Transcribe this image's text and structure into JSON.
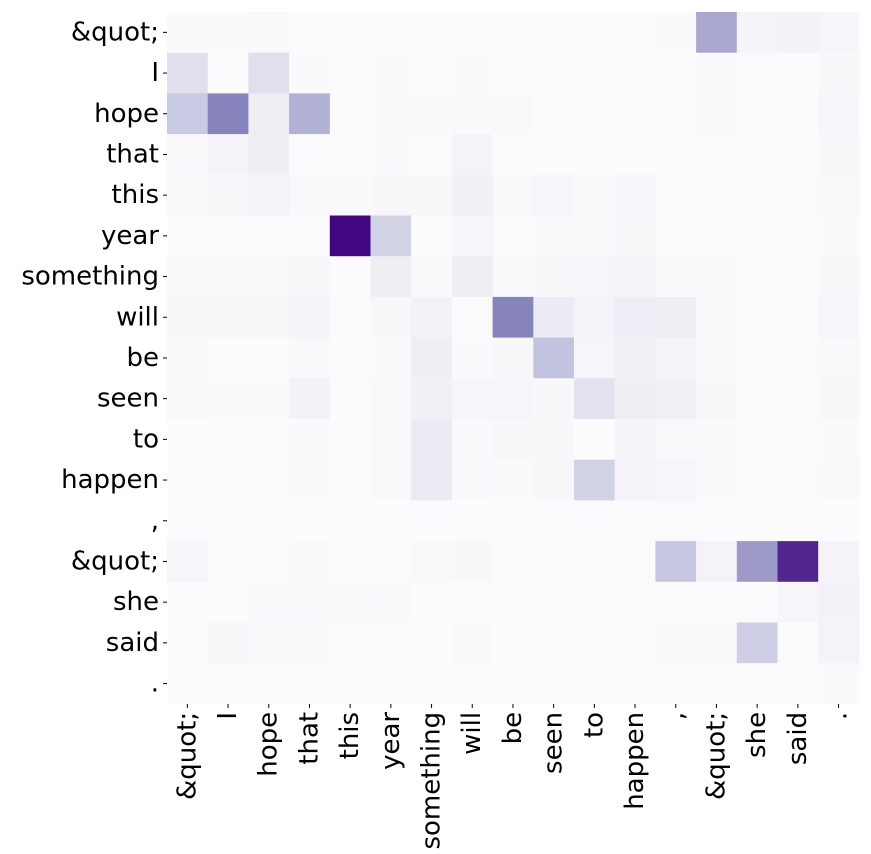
{
  "chart_data": {
    "type": "heatmap",
    "title": "",
    "xlabel": "",
    "ylabel": "",
    "x_labels": [
      "&quot;",
      "I",
      "hope",
      "that",
      "this",
      "year",
      "something",
      "will",
      "be",
      "seen",
      "to",
      "happen",
      ",",
      "&quot;",
      "she",
      "said",
      "."
    ],
    "y_labels": [
      "&quot;",
      "I",
      "hope",
      "that",
      "this",
      "year",
      "something",
      "will",
      "be",
      "seen",
      "to",
      "happen",
      ",",
      "&quot;",
      "she",
      "said",
      "."
    ],
    "colormap": "Purples",
    "value_range": [
      0,
      1
    ],
    "grid": false,
    "colorbar": false,
    "values": [
      [
        0.02,
        0.02,
        0.03,
        0.01,
        0.01,
        0.01,
        0.01,
        0.01,
        0.01,
        0.01,
        0.01,
        0.01,
        0.02,
        0.45,
        0.06,
        0.08,
        0.05
      ],
      [
        0.22,
        0.01,
        0.22,
        0.02,
        0.01,
        0.02,
        0.01,
        0.02,
        0.01,
        0.01,
        0.01,
        0.01,
        0.01,
        0.02,
        0.01,
        0.01,
        0.04
      ],
      [
        0.32,
        0.6,
        0.12,
        0.42,
        0.01,
        0.02,
        0.02,
        0.03,
        0.03,
        0.01,
        0.01,
        0.01,
        0.01,
        0.03,
        0.01,
        0.01,
        0.05
      ],
      [
        0.02,
        0.07,
        0.12,
        0.01,
        0.01,
        0.02,
        0.01,
        0.07,
        0.01,
        0.01,
        0.01,
        0.01,
        0.01,
        0.01,
        0.01,
        0.01,
        0.04
      ],
      [
        0.03,
        0.04,
        0.07,
        0.03,
        0.02,
        0.04,
        0.04,
        0.1,
        0.03,
        0.05,
        0.03,
        0.05,
        0.01,
        0.01,
        0.01,
        0.01,
        0.03
      ],
      [
        0.01,
        0.01,
        0.01,
        0.01,
        0.98,
        0.28,
        0.01,
        0.05,
        0.01,
        0.02,
        0.02,
        0.04,
        0.01,
        0.01,
        0.01,
        0.01,
        0.02
      ],
      [
        0.02,
        0.03,
        0.03,
        0.04,
        0.01,
        0.12,
        0.02,
        0.12,
        0.03,
        0.04,
        0.05,
        0.06,
        0.02,
        0.02,
        0.01,
        0.01,
        0.04
      ],
      [
        0.04,
        0.04,
        0.04,
        0.06,
        0.01,
        0.04,
        0.08,
        0.01,
        0.6,
        0.14,
        0.07,
        0.13,
        0.12,
        0.03,
        0.01,
        0.01,
        0.05
      ],
      [
        0.02,
        0.01,
        0.01,
        0.03,
        0.01,
        0.02,
        0.12,
        0.02,
        0.04,
        0.35,
        0.05,
        0.1,
        0.07,
        0.02,
        0.01,
        0.01,
        0.03
      ],
      [
        0.03,
        0.02,
        0.02,
        0.08,
        0.01,
        0.03,
        0.1,
        0.05,
        0.05,
        0.04,
        0.2,
        0.12,
        0.1,
        0.04,
        0.01,
        0.01,
        0.04
      ],
      [
        0.01,
        0.01,
        0.01,
        0.02,
        0.01,
        0.03,
        0.14,
        0.02,
        0.04,
        0.04,
        0.0,
        0.06,
        0.03,
        0.02,
        0.01,
        0.01,
        0.02
      ],
      [
        0.01,
        0.01,
        0.01,
        0.02,
        0.01,
        0.03,
        0.14,
        0.03,
        0.02,
        0.04,
        0.28,
        0.06,
        0.05,
        0.02,
        0.01,
        0.01,
        0.03
      ],
      [
        0.01,
        0.01,
        0.01,
        0.01,
        0.01,
        0.01,
        0.01,
        0.01,
        0.01,
        0.01,
        0.01,
        0.01,
        0.01,
        0.01,
        0.01,
        0.01,
        0.01
      ],
      [
        0.05,
        0.01,
        0.01,
        0.03,
        0.01,
        0.01,
        0.03,
        0.04,
        0.01,
        0.01,
        0.01,
        0.01,
        0.33,
        0.07,
        0.5,
        0.88,
        0.06
      ],
      [
        0.01,
        0.01,
        0.03,
        0.02,
        0.02,
        0.03,
        0.01,
        0.01,
        0.01,
        0.01,
        0.01,
        0.01,
        0.01,
        0.01,
        0.01,
        0.05,
        0.08
      ],
      [
        0.01,
        0.04,
        0.02,
        0.03,
        0.01,
        0.01,
        0.01,
        0.03,
        0.01,
        0.01,
        0.01,
        0.01,
        0.03,
        0.02,
        0.3,
        0.01,
        0.07
      ],
      [
        0.01,
        0.01,
        0.01,
        0.01,
        0.01,
        0.01,
        0.01,
        0.01,
        0.01,
        0.01,
        0.01,
        0.01,
        0.01,
        0.01,
        0.01,
        0.01,
        0.02
      ]
    ]
  }
}
